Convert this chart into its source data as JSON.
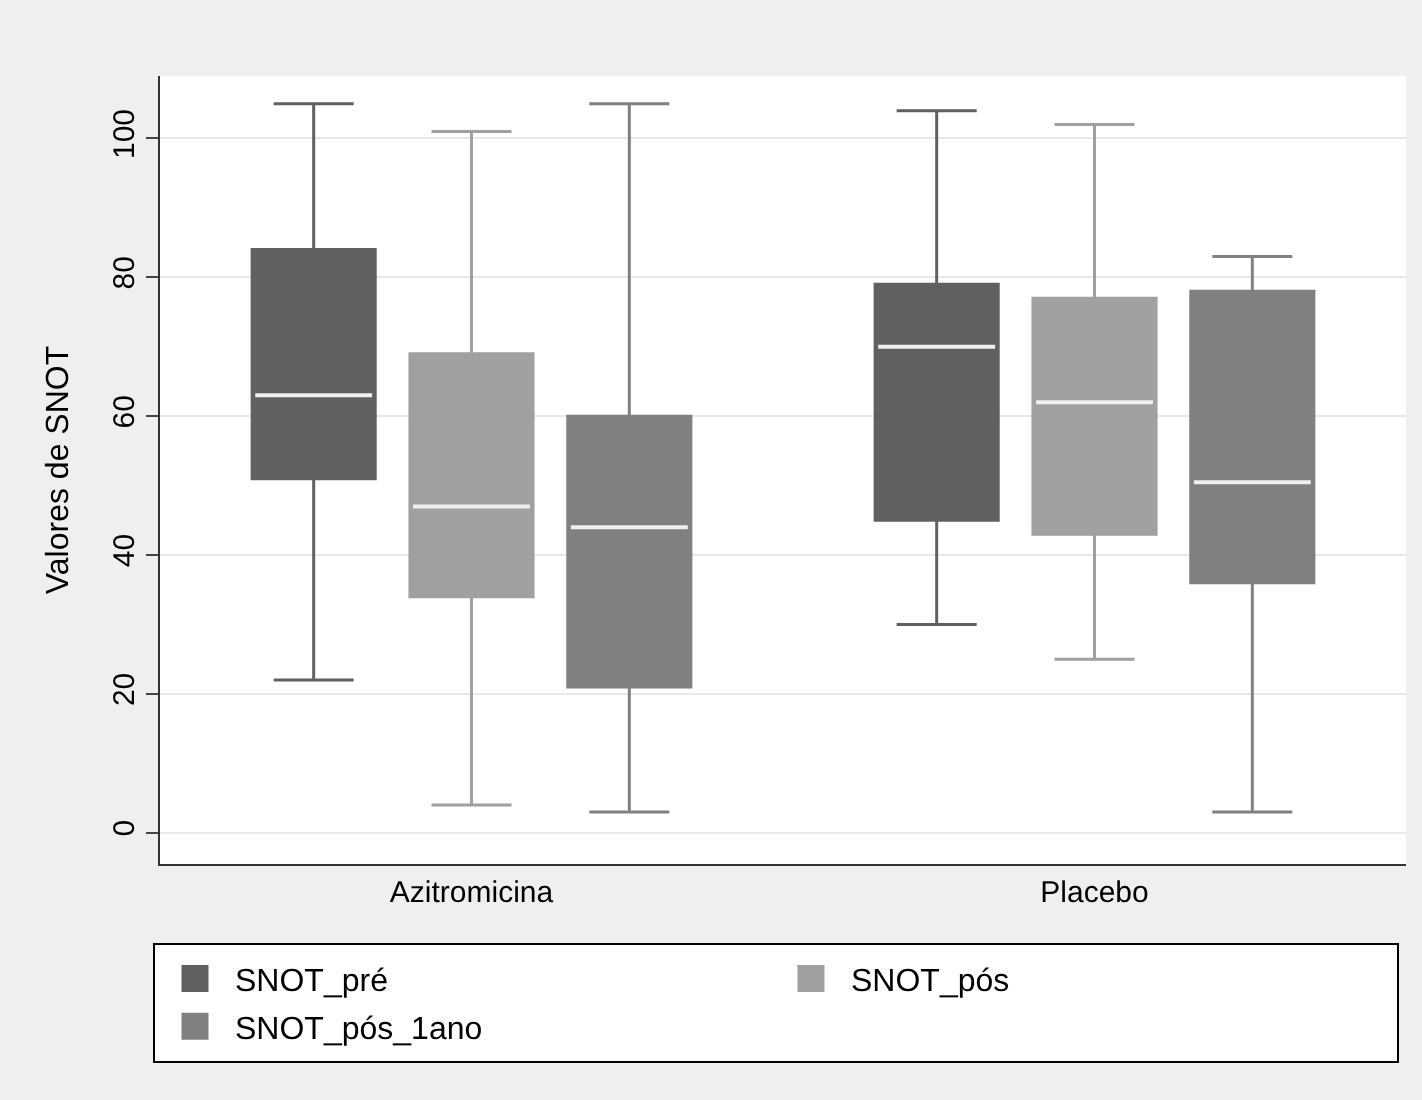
{
  "chart_data": {
    "type": "box",
    "ylabel": "Valores de SNOT",
    "categories": [
      "Azitromicina",
      "Placebo"
    ],
    "ylim": [
      -4.5,
      109
    ],
    "yticks": [
      0,
      20,
      40,
      60,
      80,
      100
    ],
    "grid": "y",
    "legend": "bottom",
    "series": [
      {
        "name": "SNOT_pré",
        "color": "#606060",
        "boxes": [
          {
            "low": 22,
            "q1": 51,
            "median": 63,
            "q3": 84,
            "high": 105
          },
          {
            "low": 30,
            "q1": 45,
            "median": 70,
            "q3": 79,
            "high": 104
          }
        ]
      },
      {
        "name": "SNOT_pós",
        "color": "#a0a0a0",
        "boxes": [
          {
            "low": 4,
            "q1": 34,
            "median": 47,
            "q3": 69,
            "high": 101
          },
          {
            "low": 25,
            "q1": 43,
            "median": 62,
            "q3": 77,
            "high": 102
          }
        ]
      },
      {
        "name": "SNOT_pós_1ano",
        "color": "#808080",
        "boxes": [
          {
            "low": 3,
            "q1": 21,
            "median": 44,
            "q3": 60,
            "high": 105
          },
          {
            "low": 3,
            "q1": 36,
            "median": 50.5,
            "q3": 78,
            "high": 83
          }
        ]
      }
    ]
  }
}
